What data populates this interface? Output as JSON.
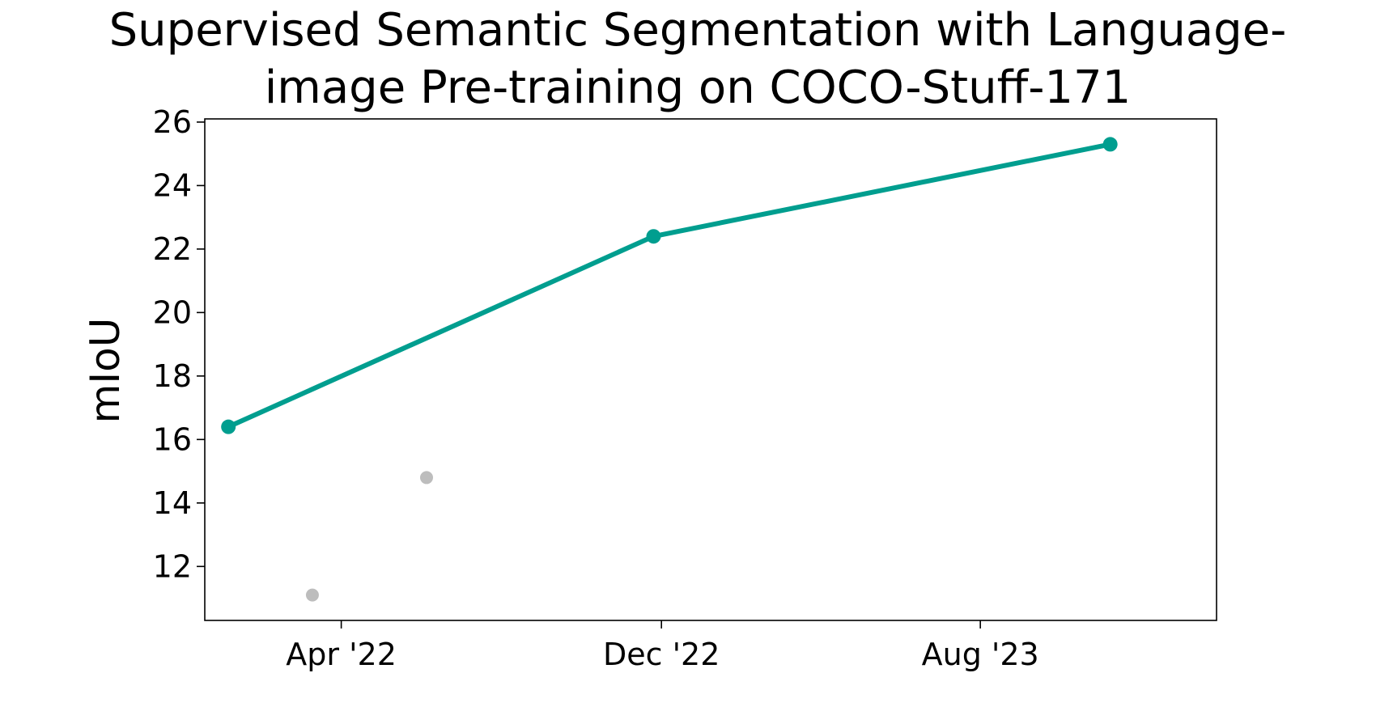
{
  "chart_data": {
    "type": "line",
    "title_lines": [
      "Supervised Semantic Segmentation with Language-",
      "image Pre-training on COCO-Stuff-171"
    ],
    "xlabel": "",
    "ylabel": "mIoU",
    "x_ticks": [
      "Apr '22",
      "Dec '22",
      "Aug '23"
    ],
    "xlim": [
      "2021-12-18",
      "2024-01-28"
    ],
    "ylim": [
      10.3,
      26.1
    ],
    "y_ticks": [
      12,
      14,
      16,
      18,
      20,
      22,
      24,
      26
    ],
    "grid": false,
    "series": [
      {
        "color": "#009e8f",
        "points": [
          {
            "x": "2022-01-05",
            "y": 16.4
          },
          {
            "x": "2022-11-25",
            "y": 22.4
          },
          {
            "x": "2023-11-08",
            "y": 25.3
          }
        ]
      },
      {
        "color": "#bdbdbd",
        "points": [
          {
            "x": "2022-03-10",
            "y": 11.1
          },
          {
            "x": "2022-06-05",
            "y": 14.8
          }
        ]
      }
    ]
  }
}
